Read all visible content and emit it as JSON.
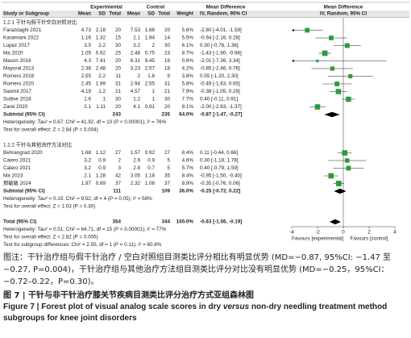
{
  "chart_data": {
    "type": "forest",
    "group_headers": [
      "Experimental",
      "Control",
      "Mean Difference",
      "Mean Difference"
    ],
    "column_headers": [
      "Study or Subgroup",
      "Mean",
      "SD",
      "Total",
      "Mean",
      "SD",
      "Total",
      "Weight",
      "IV, Random, 95% CI",
      "IV, Random, 95% CI"
    ],
    "color": "#2e9b3a",
    "xlim": [
      -4,
      4
    ],
    "xticks": [
      -4,
      -2,
      0,
      2,
      4
    ],
    "favours": [
      "Favours [experimental]",
      "Favours [control]"
    ],
    "groups": [
      {
        "label": "1.2.1 干针与假干针空白对照对比",
        "studies": [
          {
            "name": "Farazdaghi 2021",
            "exp": [
              4.73,
              2.18,
              20
            ],
            "ctrl": [
              7.53,
              1.68,
              20
            ],
            "weight": 5.6,
            "weight_label": "5.6%",
            "md": -2.8,
            "lo": -4.01,
            "hi": -1.59,
            "ci_label": "-2.80 [-4.01, -1.59]"
          },
          {
            "name": "Karamiani 2022",
            "exp": [
              1.16,
              1.32,
              15
            ],
            "ctrl": [
              2.1,
              1.94,
              14
            ],
            "weight": 5.5,
            "weight_label": "5.5%",
            "md": -0.94,
            "lo": -2.16,
            "hi": 0.28,
            "ci_label": "-0.94 [-2.16, 0.28]"
          },
          {
            "name": "Lopez 2017",
            "exp": [
              3.5,
              2.2,
              30
            ],
            "ctrl": [
              3.2,
              2,
              30
            ],
            "weight": 6.1,
            "weight_label": "6.1%",
            "md": 0.3,
            "lo": -0.76,
            "hi": 1.36,
            "ci_label": "0.30 [-0.76, 1.36]"
          },
          {
            "name": "Ma 2020",
            "exp": [
              1.05,
              0.92,
              25
            ],
            "ctrl": [
              2.48,
              0.75,
              23
            ],
            "weight": 8.7,
            "weight_label": "8.7%",
            "md": -1.43,
            "lo": -1.9,
            "hi": -0.96,
            "ci_label": "-1.43 [-1.90, -0.96]"
          },
          {
            "name": "Mason 2016",
            "exp": [
              4.3,
              7.41,
              20
            ],
            "ctrl": [
              6.31,
              9.45,
              19
            ],
            "weight": 0.6,
            "weight_label": "0.6%",
            "md": -2.01,
            "lo": -7.36,
            "hi": 3.34,
            "ci_label": "-2.01 [-7.36, 3.34]"
          },
          {
            "name": "Mayoral 2013",
            "exp": [
              2.38,
              2.48,
              20
            ],
            "ctrl": [
              3.23,
              2.57,
              18
            ],
            "weight": 4.2,
            "weight_label": "4.2%",
            "md": -0.85,
            "lo": -2.46,
            "hi": 0.76,
            "ci_label": "-0.85 [-2.46, 0.76]"
          },
          {
            "name": "Romero 2018",
            "exp": [
              2.55,
              2.2,
              11
            ],
            "ctrl": [
              2,
              1.8,
              9
            ],
            "weight": 3.8,
            "weight_label": "3.8%",
            "md": 0.55,
            "lo": -1.2,
            "hi": 2.3,
            "ci_label": "0.55 [-1.20, 2.30]"
          },
          {
            "name": "Romero 2020",
            "exp": [
              2.45,
              1.99,
              31
            ],
            "ctrl": [
              2.94,
              2.55,
              31
            ],
            "weight": 5.8,
            "weight_label": "5.8%",
            "md": -0.49,
            "lo": -1.63,
            "hi": 0.65,
            "ci_label": "-0.49 [-1.63, 0.65]"
          },
          {
            "name": "Saomil 2017",
            "exp": [
              4.19,
              1.2,
              21
            ],
            "ctrl": [
              4.57,
              1,
              21
            ],
            "weight": 7.9,
            "weight_label": "7.9%",
            "md": -0.38,
            "lo": -1.05,
            "hi": 0.29,
            "ci_label": "-0.38 [-1.05, 0.29]"
          },
          {
            "name": "Sutlive 2018",
            "exp": [
              1.6,
              1,
              30
            ],
            "ctrl": [
              1.2,
              1,
              30
            ],
            "weight": 7.7,
            "weight_label": "7.7%",
            "md": 0.4,
            "lo": -0.11,
            "hi": 0.91,
            "ci_label": "0.40 [-0.11, 0.91]"
          },
          {
            "name": "Zarei 2020",
            "exp": [
              2.1,
              1.11,
              20
            ],
            "ctrl": [
              4.1,
              0.91,
              20
            ],
            "weight": 8.1,
            "weight_label": "8.1%",
            "md": -2,
            "lo": -2.63,
            "hi": -1.37,
            "ci_label": "-2.00 [-2.63, -1.37]"
          }
        ],
        "subtotal": {
          "name": "Subtotal (95% CI)",
          "exp_total": 243,
          "ctrl_total": 235,
          "weight_label": "64.0%",
          "md": -0.87,
          "lo": -1.47,
          "hi": -0.27,
          "ci_label": "-0.87 [-1.47, -0.27]"
        },
        "heterogeneity": "Heterogeneity: Tau² = 0.67; Chi² = 41.92, df = 10 (P < 0.00001); I² = 76%",
        "overall": "Test for overall effect: Z = 2.84 (P = 0.004)"
      },
      {
        "label": "1.2.2 干针与其他治疗方法对比",
        "studies": [
          {
            "name": "Behrangrad 2020",
            "exp": [
              1.68,
              1.12,
              27
            ],
            "ctrl": [
              1.57,
              0.92,
              27
            ],
            "weight": 8.4,
            "weight_label": "8.4%",
            "md": 0.11,
            "lo": -0.44,
            "hi": 0.66,
            "ci_label": "0.11 [-0.44, 0.66]"
          },
          {
            "name": "Calero 2021",
            "exp": [
              3.2,
              0.9,
              2
            ],
            "ctrl": [
              2.9,
              0.9,
              5
            ],
            "weight": 4.6,
            "weight_label": "4.6%",
            "md": 0.3,
            "lo": -1.18,
            "hi": 1.78,
            "ci_label": "0.30 [-1.18, 1.78]"
          },
          {
            "name": "Calero 2021",
            "exp": [
              3.2,
              0.9,
              3
            ],
            "ctrl": [
              2.8,
              0.7,
              5
            ],
            "weight": 5.7,
            "weight_label": "5.7%",
            "md": 0.4,
            "lo": -0.79,
            "hi": 1.59,
            "ci_label": "0.40 [-0.79, 1.59]"
          },
          {
            "name": "Ma 2023",
            "exp": [
              2.1,
              1.28,
              42
            ],
            "ctrl": [
              3.05,
              1.18,
              35
            ],
            "weight": 8.4,
            "weight_label": "8.4%",
            "md": -0.95,
            "lo": -1.5,
            "hi": -0.4,
            "ci_label": "-0.95 [-1.50, -0.40]"
          },
          {
            "name": "邢敏敏 2024",
            "exp": [
              1.97,
              0.69,
              37
            ],
            "ctrl": [
              2.32,
              1.06,
              37
            ],
            "weight": 8.9,
            "weight_label": "8.9%",
            "md": -0.35,
            "lo": -0.76,
            "hi": 0.06,
            "ci_label": "-0.35 [-0.76, 0.06]"
          }
        ],
        "subtotal": {
          "name": "Subtotal (95% CI)",
          "exp_total": 111,
          "ctrl_total": 109,
          "weight_label": "36.0%",
          "md": -0.25,
          "lo": -0.72,
          "hi": 0.22,
          "ci_label": "-0.25 [-0.72, 0.22]"
        },
        "heterogeneity": "Heterogeneity: Tau² = 0.15; Chi² = 9.52, df = 4 (P = 0.05); I² = 58%",
        "overall": "Test for overall effect: Z = 1.03 (P = 0.30)"
      }
    ],
    "total": {
      "name": "Total (95% CI)",
      "exp_total": 354,
      "ctrl_total": 344,
      "weight_label": "100.0%",
      "md": -0.63,
      "lo": -1.06,
      "hi": -0.19,
      "ci_label": "-0.63 [-1.06, -0.19]"
    },
    "total_heterogeneity": "Heterogeneity: Tau² = 0.51; Chi² = 64.71, df = 15 (P < 0.00001); I² = 77%",
    "total_overall": "Test for overall effect: Z = 2.82 (P = 0.005)",
    "subgroup_differences": "Test for subgroup differences: Chi² = 2.55, df = 1 (P = 0.11), I² = 60.8%"
  },
  "caption": {
    "note": "图注：干针治疗组与假干针治疗 / 空白对照组目测类比评分相比有明显优势 (MD=−0.87, 95%CI: −1.47 至 −0.27, P=0.004)，干针治疗组与其他治疗方法组目测类比评分对比没有明显优势 (MD=−0.25，95%CI：−0.72–0.22，P=0.30)。",
    "title_zh": "图 7  |  干针与非干针治疗膝关节疾病目测类比评分治疗方式亚组森林图",
    "title_en": [
      "Figure 7  |  Forest plot of visual analog scale scores in dry ",
      "versus",
      " non-dry needling treatment method subgroups for knee joint disorders"
    ]
  }
}
